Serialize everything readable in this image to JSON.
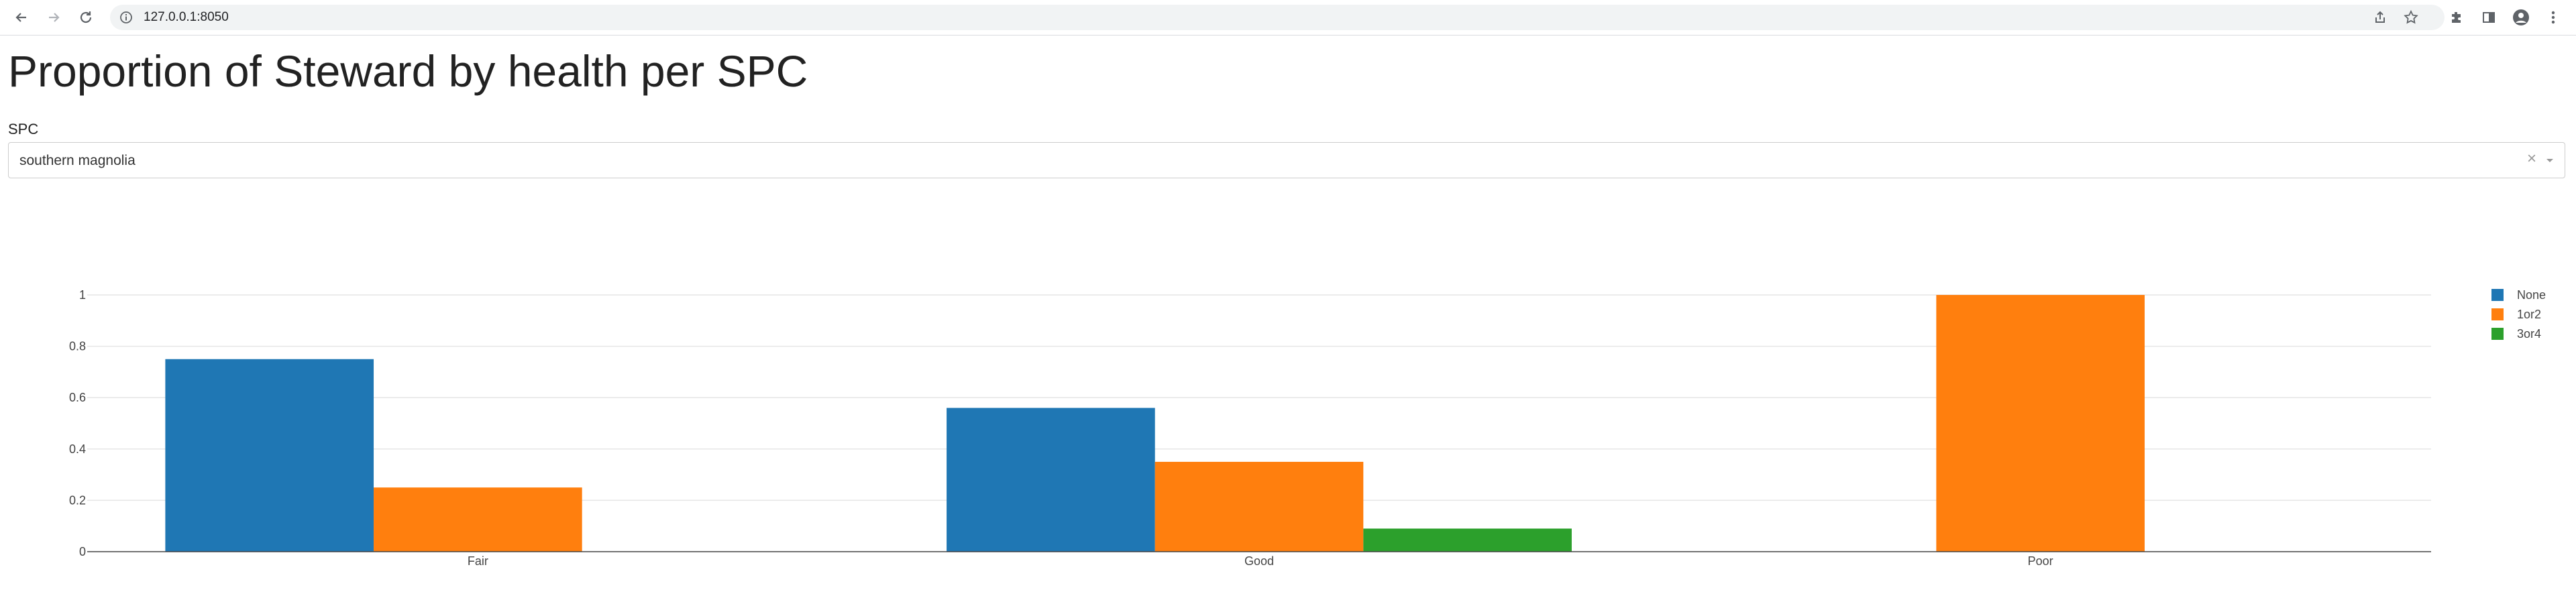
{
  "browser": {
    "url": "127.0.0.1:8050"
  },
  "page": {
    "title": "Proportion of Steward by health per SPC"
  },
  "dropdown": {
    "label": "SPC",
    "selected": "southern magnolia",
    "clear_glyph": "×"
  },
  "chart_data": {
    "type": "bar",
    "categories": [
      "Fair",
      "Good",
      "Poor"
    ],
    "series": [
      {
        "name": "None",
        "values": [
          0.75,
          0.56,
          0
        ],
        "color": "#1f77b4"
      },
      {
        "name": "1or2",
        "values": [
          0.25,
          0.35,
          1.0
        ],
        "color": "#ff7f0e"
      },
      {
        "name": "3or4",
        "values": [
          0,
          0.09,
          0
        ],
        "color": "#2ca02c"
      }
    ],
    "yticks": [
      "0",
      "0.2",
      "0.4",
      "0.6",
      "0.8",
      "1"
    ],
    "ylim": [
      0,
      1.0
    ],
    "grid": true,
    "legend_position": "top-right"
  }
}
